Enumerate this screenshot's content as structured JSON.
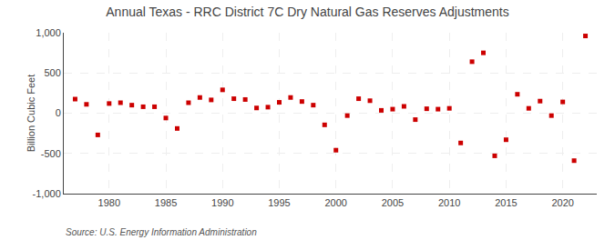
{
  "chart_data": {
    "type": "scatter",
    "title": "Annual Texas - RRC District 7C Dry Natural Gas Reserves Adjustments",
    "ylabel": "Billion Cubic Feet",
    "source": "Source: U.S. Energy Information Administration",
    "x": [
      1977,
      1978,
      1979,
      1980,
      1981,
      1982,
      1983,
      1984,
      1985,
      1986,
      1987,
      1988,
      1989,
      1990,
      1991,
      1992,
      1993,
      1994,
      1995,
      1996,
      1997,
      1998,
      1999,
      2000,
      2001,
      2002,
      2003,
      2004,
      2005,
      2006,
      2007,
      2008,
      2009,
      2010,
      2011,
      2012,
      2013,
      2014,
      2015,
      2016,
      2017,
      2018,
      2019,
      2020,
      2021,
      2022
    ],
    "values": [
      175,
      110,
      -270,
      120,
      130,
      100,
      80,
      80,
      -60,
      -190,
      130,
      195,
      165,
      290,
      180,
      170,
      65,
      75,
      135,
      195,
      145,
      100,
      -145,
      -460,
      -30,
      180,
      155,
      35,
      50,
      85,
      -80,
      55,
      50,
      60,
      -370,
      640,
      750,
      -530,
      -330,
      235,
      60,
      150,
      -30,
      140,
      -590,
      960
    ],
    "color": "#cc0000",
    "marker": "square",
    "xlim": [
      1976,
      2023
    ],
    "ylim": [
      -1000,
      1000
    ],
    "xticks": [
      1980,
      1985,
      1990,
      1995,
      2000,
      2005,
      2010,
      2015,
      2020
    ],
    "yticks": [
      {
        "value": -1000,
        "label": "-1,000"
      },
      -500,
      0,
      500,
      {
        "value": 1000,
        "label": "1,000"
      }
    ],
    "grid": true
  }
}
